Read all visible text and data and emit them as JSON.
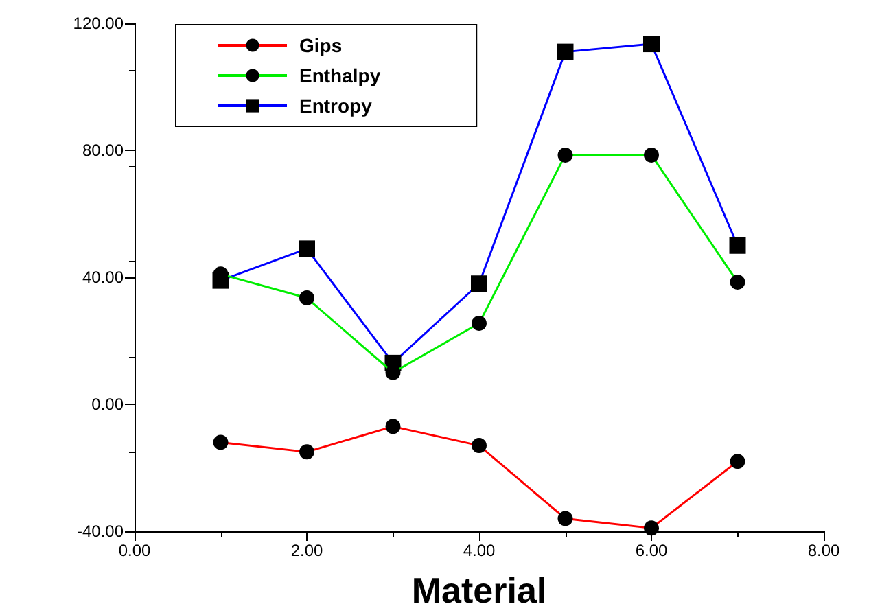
{
  "chart_data": {
    "type": "line",
    "xlabel": "Material",
    "x": [
      1,
      2,
      3,
      4,
      5,
      6,
      7
    ],
    "series": [
      {
        "name": "Gips",
        "color": "#ff0000",
        "marker": "circle",
        "values": [
          -12,
          -15,
          -7,
          -13,
          -36,
          -39,
          -18
        ]
      },
      {
        "name": "Enthalpy",
        "color": "#00ee00",
        "marker": "circle",
        "values": [
          41,
          33.5,
          10,
          25.5,
          78.5,
          78.5,
          38.5
        ]
      },
      {
        "name": "Entropy",
        "color": "#0000ff",
        "marker": "square",
        "values": [
          39,
          49,
          13,
          38,
          111,
          113.5,
          50
        ]
      }
    ],
    "xlim": [
      0,
      8
    ],
    "xticks": [
      {
        "value": 0,
        "label": "0.00"
      },
      {
        "value": 2,
        "label": "2.00"
      },
      {
        "value": 4,
        "label": "4.00"
      },
      {
        "value": 6,
        "label": "6.00"
      },
      {
        "value": 8,
        "label": "8.00"
      }
    ],
    "ylim": [
      -40,
      120
    ],
    "yticks": [
      {
        "value": -40,
        "label": "-40.00"
      },
      {
        "value": 0,
        "label": "0.00"
      },
      {
        "value": 40,
        "label": "40.00"
      },
      {
        "value": 80,
        "label": "80.00"
      },
      {
        "value": 120,
        "label": "120.00"
      }
    ],
    "grid": false,
    "legend": "top left"
  }
}
